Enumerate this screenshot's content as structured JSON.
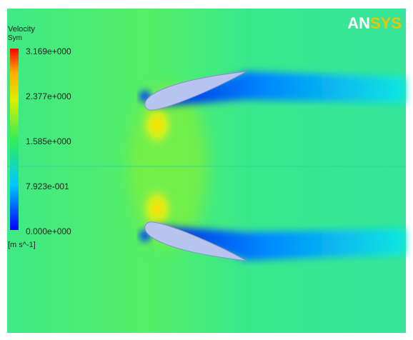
{
  "legend": {
    "title": "Velocity",
    "subtitle": "Sym",
    "labels": [
      "3.169e+000",
      "2.377e+000",
      "1.585e+000",
      "7.923e-001",
      "0.000e+000"
    ],
    "unit": "[m s^-1]"
  },
  "logo": {
    "left": "AN",
    "right": "SYS"
  }
}
